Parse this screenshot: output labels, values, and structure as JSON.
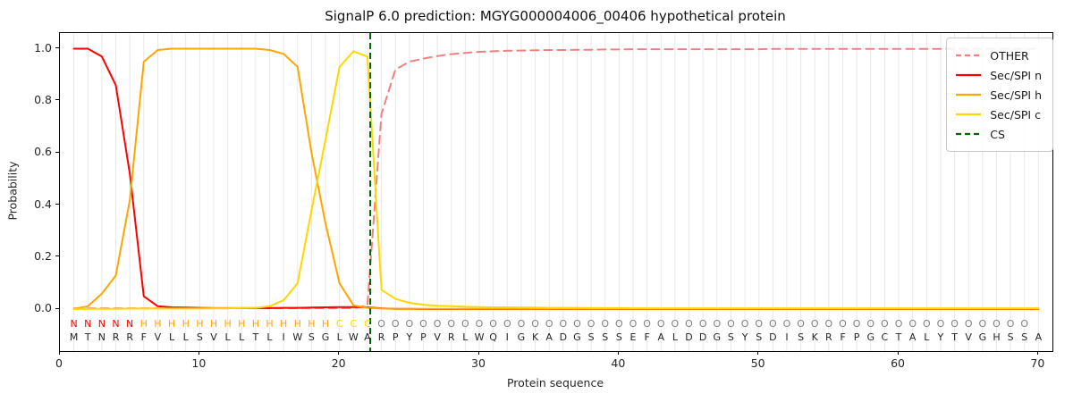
{
  "title": "SignalP 6.0 prediction: MGYG000004006_00406 hypothetical protein",
  "xlabel": "Protein sequence",
  "ylabel": "Probability",
  "axes": {
    "x_tick_labels": [
      "0",
      "10",
      "20",
      "30",
      "40",
      "50",
      "60",
      "70"
    ],
    "x_tick_values": [
      0,
      10,
      20,
      30,
      40,
      50,
      60,
      70
    ],
    "y_tick_labels": [
      "0.0",
      "0.2",
      "0.4",
      "0.6",
      "0.8",
      "1.0"
    ],
    "y_tick_values": [
      0.0,
      0.2,
      0.4,
      0.6,
      0.8,
      1.0
    ]
  },
  "legend": {
    "items": [
      {
        "label": "OTHER",
        "color": "#f08080",
        "dashed": true
      },
      {
        "label": "Sec/SPI n",
        "color": "#ff0000",
        "dashed": false
      },
      {
        "label": "Sec/SPI h",
        "color": "#ffa500",
        "dashed": false
      },
      {
        "label": "Sec/SPI c",
        "color": "#ffd700",
        "dashed": false
      },
      {
        "label": "CS",
        "color": "#006400",
        "dashed": true
      }
    ]
  },
  "chart_data": {
    "type": "line",
    "title": "SignalP 6.0 prediction: MGYG000004006_00406 hypothetical protein",
    "xlabel": "Protein sequence",
    "ylabel": "Probability",
    "xlim": [
      0,
      71
    ],
    "ylim": [
      -0.16,
      1.06
    ],
    "grid": "vertical line per residue 1-70",
    "legend_position": "upper right",
    "x_start": 1,
    "x_step": 1,
    "cs_position": 22.2,
    "sequence": "MTNRRFVLLSVLLTLIWSGLWARPYPVRLWQIGKADGSSSEFALDDGSYSDISKRFPGCTALYTVGHSSA",
    "annotation": "NNNNNHHHHHHHHHHHHHHCCCOOOOOOOOOOOOOOOOOOOOOOOOOOOOOOOOOOOOOOOOOOOOOOO",
    "annotation_colors": {
      "N": "#ff0000",
      "H": "#ffa500",
      "C": "#ffd700",
      "O": "#808080"
    },
    "sequence_color": "#262626",
    "series": [
      {
        "name": "OTHER",
        "color": "#f08080",
        "dashed": true,
        "values": [
          0.004,
          0.004,
          0.004,
          0.004,
          0.004,
          0.004,
          0.004,
          0.004,
          0.004,
          0.004,
          0.004,
          0.004,
          0.004,
          0.004,
          0.004,
          0.004,
          0.004,
          0.004,
          0.004,
          0.004,
          0.005,
          0.015,
          0.75,
          0.92,
          0.95,
          0.962,
          0.972,
          0.979,
          0.984,
          0.988,
          0.99,
          0.992,
          0.993,
          0.994,
          0.995,
          0.995,
          0.996,
          0.996,
          0.997,
          0.997,
          0.998,
          0.998,
          0.998,
          0.998,
          0.998,
          0.998,
          0.998,
          0.998,
          0.998,
          0.998,
          0.999,
          0.999,
          0.999,
          0.999,
          0.999,
          0.999,
          0.999,
          0.999,
          0.999,
          0.999,
          0.999,
          0.999,
          0.999,
          0.999,
          0.999,
          0.999,
          0.999,
          0.999,
          0.999,
          0.999
        ]
      },
      {
        "name": "Sec/SPI n",
        "color": "#ff0000",
        "dashed": false,
        "values": [
          1.0,
          1.0,
          0.97,
          0.86,
          0.52,
          0.05,
          0.012,
          0.008,
          0.007,
          0.006,
          0.005,
          0.005,
          0.005,
          0.005,
          0.005,
          0.006,
          0.006,
          0.007,
          0.008,
          0.009,
          0.009,
          0.008,
          0.004,
          0.002,
          0.002,
          0.001,
          0.001,
          0.001,
          0.001,
          0.001,
          0.001,
          0.001,
          0.001,
          0.001,
          0.001,
          0.001,
          0.001,
          0.001,
          0.001,
          0.001,
          0.001,
          0.001,
          0.001,
          0.001,
          0.001,
          0.001,
          0.001,
          0.001,
          0.001,
          0.001,
          0.001,
          0.001,
          0.001,
          0.001,
          0.001,
          0.001,
          0.001,
          0.001,
          0.001,
          0.001,
          0.001,
          0.001,
          0.001,
          0.001,
          0.001,
          0.001,
          0.001,
          0.001,
          0.001,
          0.001
        ]
      },
      {
        "name": "Sec/SPI h",
        "color": "#ffa500",
        "dashed": false,
        "values": [
          0.002,
          0.012,
          0.06,
          0.13,
          0.42,
          0.95,
          0.995,
          1.0,
          1.0,
          1.0,
          1.0,
          1.0,
          1.0,
          1.0,
          0.995,
          0.98,
          0.93,
          0.6,
          0.33,
          0.1,
          0.015,
          0.006,
          0.003,
          0.002,
          0.002,
          0.002,
          0.002,
          0.002,
          0.002,
          0.002,
          0.002,
          0.002,
          0.002,
          0.002,
          0.002,
          0.002,
          0.002,
          0.002,
          0.002,
          0.002,
          0.002,
          0.002,
          0.002,
          0.002,
          0.002,
          0.002,
          0.002,
          0.002,
          0.002,
          0.002,
          0.002,
          0.002,
          0.002,
          0.002,
          0.002,
          0.002,
          0.002,
          0.002,
          0.002,
          0.002,
          0.002,
          0.002,
          0.002,
          0.002,
          0.002,
          0.002,
          0.002,
          0.002,
          0.002,
          0.002
        ]
      },
      {
        "name": "Sec/SPI c",
        "color": "#ffd700",
        "dashed": false,
        "values": [
          0.001,
          0.002,
          0.002,
          0.002,
          0.003,
          0.003,
          0.003,
          0.003,
          0.003,
          0.003,
          0.004,
          0.004,
          0.005,
          0.006,
          0.012,
          0.035,
          0.1,
          0.38,
          0.65,
          0.93,
          0.99,
          0.97,
          0.075,
          0.04,
          0.025,
          0.018,
          0.014,
          0.012,
          0.01,
          0.009,
          0.008,
          0.008,
          0.007,
          0.007,
          0.006,
          0.006,
          0.006,
          0.005,
          0.005,
          0.005,
          0.004,
          0.004,
          0.004,
          0.004,
          0.004,
          0.004,
          0.004,
          0.004,
          0.004,
          0.004,
          0.004,
          0.004,
          0.004,
          0.004,
          0.004,
          0.004,
          0.004,
          0.004,
          0.004,
          0.004,
          0.004,
          0.004,
          0.004,
          0.004,
          0.004,
          0.004,
          0.004,
          0.004,
          0.004,
          0.004
        ]
      }
    ],
    "cs_series_name": "CS",
    "cs_color": "#006400"
  }
}
